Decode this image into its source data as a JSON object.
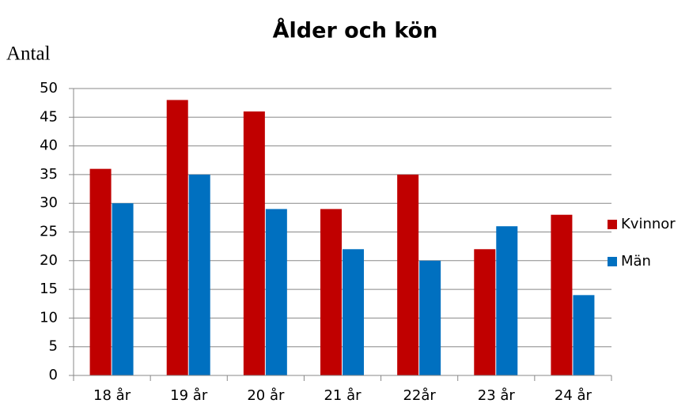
{
  "chart_data": {
    "type": "bar",
    "title": "Ålder och kön",
    "y_label": "Antal",
    "categories": [
      "18 år",
      "19 år",
      "20 år",
      "21 år",
      "22år",
      "23 år",
      "24 år"
    ],
    "series": [
      {
        "name": "Kvinnor",
        "color": "#c00000",
        "values": [
          36,
          48,
          46,
          29,
          35,
          22,
          28
        ]
      },
      {
        "name": "Män",
        "color": "#0070c0",
        "values": [
          30,
          35,
          29,
          22,
          20,
          26,
          14
        ]
      }
    ],
    "ylim": [
      0,
      50
    ],
    "yticks": [
      0,
      5,
      10,
      15,
      20,
      25,
      30,
      35,
      40,
      45,
      50
    ],
    "grid": true,
    "legend": "right"
  }
}
